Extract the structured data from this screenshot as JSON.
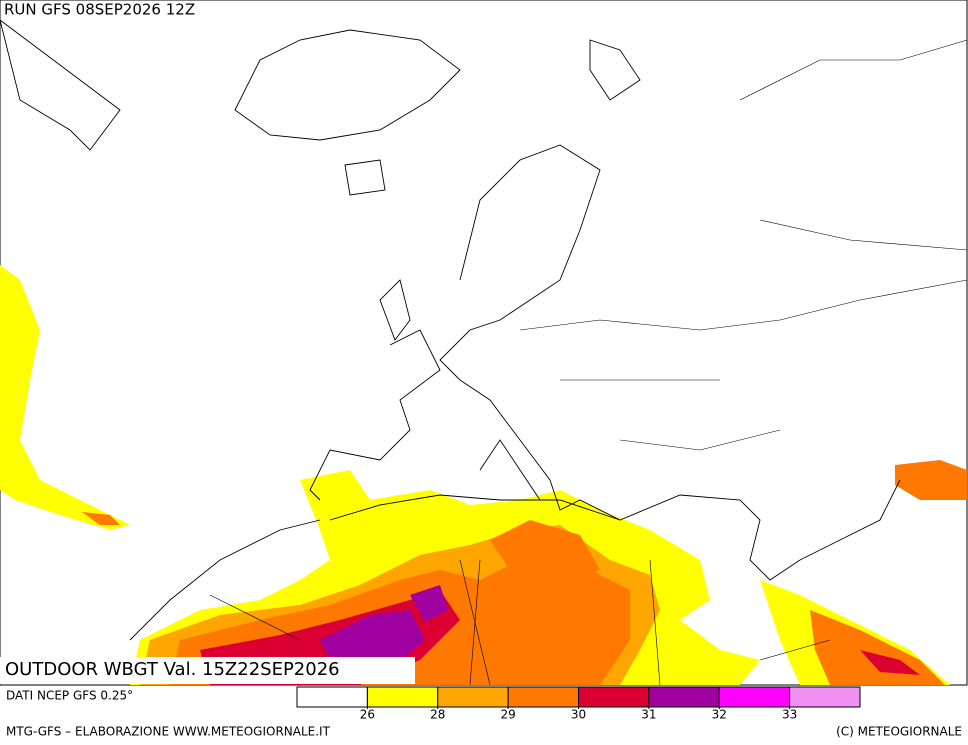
{
  "header": {
    "run": "RUN GFS 08SEP2026 12Z"
  },
  "map": {
    "title": "OUTDOOR WBGT Val. 15Z22SEP2026"
  },
  "legend": {
    "colors": [
      "#ffffff",
      "#ffff00",
      "#ffa500",
      "#ff7800",
      "#dc0032",
      "#a000a0",
      "#ff00ff",
      "#f090f0"
    ],
    "labels": [
      26,
      28,
      29,
      30,
      31,
      32,
      33
    ]
  },
  "footer": {
    "source": "DATI NCEP GFS 0.25°",
    "credit": "MTG-GFS – ELABORAZIONE WWW.METEOGIORNALE.IT",
    "copyright": "(C) METEOGIORNALE"
  }
}
